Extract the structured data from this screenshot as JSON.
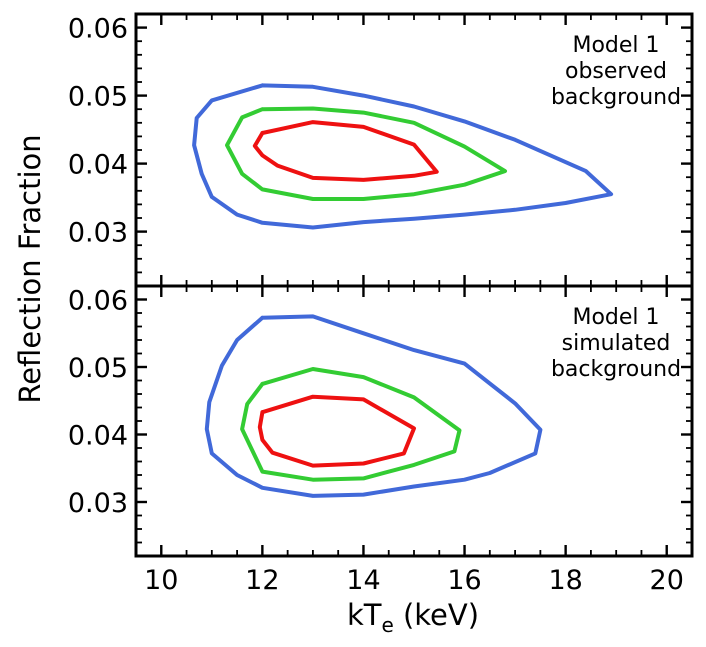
{
  "chart_data": {
    "type": "line",
    "shared_xlabel": {
      "main": "kT",
      "sub": "e",
      "rest": " (keV)"
    },
    "shared_ylabel": "Reflection Fraction",
    "xlim": [
      9.5,
      20.5
    ],
    "x_ticks": [
      10,
      12,
      14,
      16,
      18,
      20
    ],
    "x_tick_labels": [
      "10",
      "12",
      "14",
      "16",
      "18",
      "20"
    ],
    "grid": false,
    "colors": {
      "outer": "#4169d9",
      "middle": "#33cc33",
      "inner": "#ee1111"
    },
    "panels": [
      {
        "annotation": [
          "Model 1",
          "observed",
          "background"
        ],
        "ylim": [
          0.022,
          0.062
        ],
        "y_ticks": [
          0.03,
          0.04,
          0.05,
          0.06
        ],
        "y_tick_labels": [
          "0.03",
          "0.04",
          "0.05",
          "0.06"
        ],
        "series": [
          {
            "level": "outer",
            "x": [
              12.0,
              13.0,
              14.0,
              15.0,
              16.0,
              17.0,
              18.4,
              18.9,
              18.0,
              17.0,
              16.0,
              15.0,
              14.0,
              13.0,
              12.0,
              11.5,
              11.0,
              10.8,
              10.65,
              10.7,
              11.0,
              12.0
            ],
            "y": [
              0.0515,
              0.0513,
              0.05,
              0.0484,
              0.0462,
              0.0435,
              0.0389,
              0.0355,
              0.0342,
              0.0332,
              0.0325,
              0.0319,
              0.0314,
              0.0306,
              0.0313,
              0.0325,
              0.0351,
              0.0385,
              0.0427,
              0.0467,
              0.0493,
              0.0515
            ]
          },
          {
            "level": "middle",
            "x": [
              12.0,
              13.0,
              14.0,
              15.0,
              16.0,
              16.8,
              16.0,
              15.0,
              14.0,
              13.0,
              12.0,
              11.6,
              11.3,
              11.6,
              12.0
            ],
            "y": [
              0.048,
              0.0481,
              0.0475,
              0.046,
              0.0425,
              0.0389,
              0.0369,
              0.0355,
              0.0348,
              0.0348,
              0.0362,
              0.0385,
              0.0427,
              0.0468,
              0.048
            ]
          },
          {
            "level": "inner",
            "x": [
              12.0,
              13.0,
              14.0,
              15.0,
              15.45,
              15.0,
              14.0,
              13.0,
              12.3,
              12.0,
              11.85,
              12.0
            ],
            "y": [
              0.0445,
              0.0461,
              0.0454,
              0.0428,
              0.0388,
              0.0382,
              0.0376,
              0.0379,
              0.0397,
              0.0412,
              0.0426,
              0.0445
            ]
          }
        ]
      },
      {
        "annotation": [
          "Model 1",
          "simulated",
          "background"
        ],
        "ylim": [
          0.022,
          0.062
        ],
        "y_ticks": [
          0.03,
          0.04,
          0.05,
          0.06
        ],
        "y_tick_labels": [
          "0.03",
          "0.04",
          "0.05",
          "0.06"
        ],
        "series": [
          {
            "level": "outer",
            "x": [
              12.0,
              13.0,
              14.0,
              15.0,
              16.0,
              17.0,
              17.5,
              17.4,
              16.5,
              16.0,
              15.0,
              14.0,
              13.0,
              12.0,
              11.5,
              11.0,
              10.9,
              10.95,
              11.2,
              11.5,
              12.0
            ],
            "y": [
              0.0573,
              0.0575,
              0.055,
              0.0525,
              0.0505,
              0.0446,
              0.0407,
              0.0372,
              0.0343,
              0.0333,
              0.0323,
              0.0311,
              0.0309,
              0.0321,
              0.034,
              0.0372,
              0.0408,
              0.0448,
              0.0502,
              0.054,
              0.0573
            ]
          },
          {
            "level": "middle",
            "x": [
              12.0,
              13.0,
              14.0,
              15.0,
              15.9,
              15.8,
              15.0,
              14.0,
              13.0,
              12.0,
              11.6,
              11.7,
              12.0
            ],
            "y": [
              0.0475,
              0.0497,
              0.0485,
              0.0455,
              0.0406,
              0.0375,
              0.0355,
              0.0335,
              0.0333,
              0.0345,
              0.0408,
              0.0445,
              0.0475
            ]
          },
          {
            "level": "inner",
            "x": [
              12.0,
              13.0,
              14.0,
              15.0,
              14.8,
              14.0,
              13.0,
              12.2,
              12.0,
              11.95,
              12.0
            ],
            "y": [
              0.0433,
              0.0456,
              0.0452,
              0.0409,
              0.0372,
              0.0357,
              0.0354,
              0.0373,
              0.0392,
              0.0411,
              0.0433
            ]
          }
        ]
      }
    ]
  }
}
